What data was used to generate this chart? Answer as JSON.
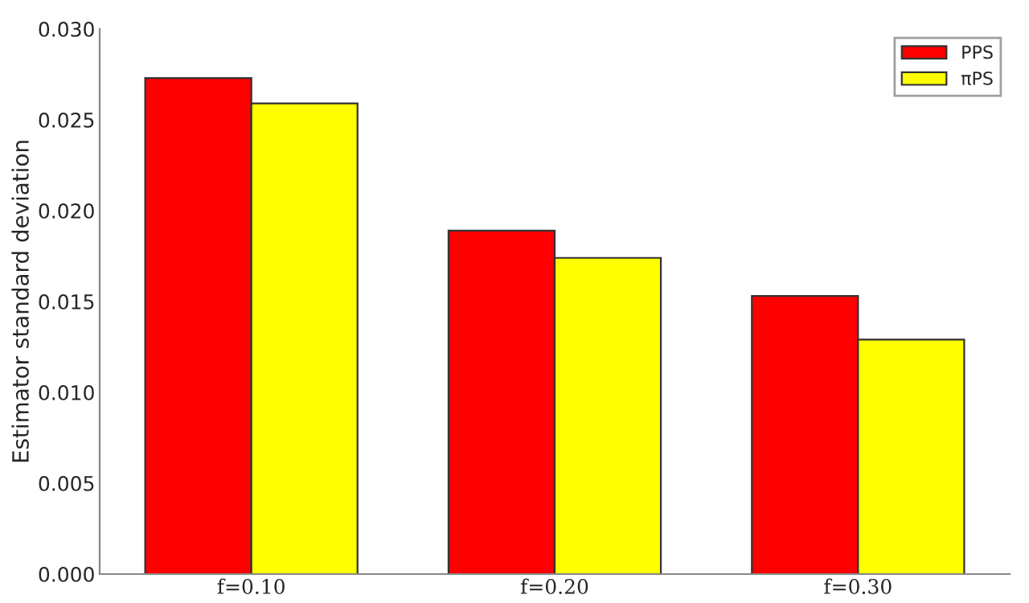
{
  "chart_data": {
    "type": "bar",
    "ylabel": "Estimator standard deviation",
    "categories": [
      "f=0.10",
      "f=0.20",
      "f=0.30"
    ],
    "series": [
      {
        "name": "PPS",
        "color": "#ff0000",
        "values": [
          0.0273,
          0.0189,
          0.0153
        ]
      },
      {
        "name": "πPS",
        "color": "#ffff00",
        "values": [
          0.0259,
          0.0174,
          0.0129
        ]
      }
    ],
    "ylim": [
      0,
      0.03
    ],
    "yticks": [
      {
        "value": 0,
        "label": "0.000"
      },
      {
        "value": 0.005,
        "label": "0.005"
      },
      {
        "value": 0.01,
        "label": "0.010"
      },
      {
        "value": 0.015,
        "label": "0.015"
      },
      {
        "value": 0.02,
        "label": "0.020"
      },
      {
        "value": 0.025,
        "label": "0.025"
      },
      {
        "value": 0.03,
        "label": "0.030"
      }
    ],
    "grid": false,
    "legend": "top right"
  }
}
